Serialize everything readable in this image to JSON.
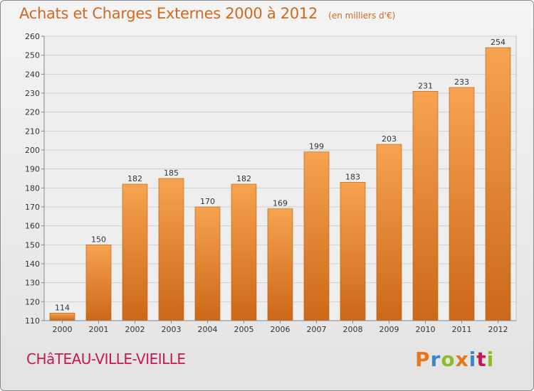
{
  "chart_data": {
    "type": "bar",
    "title": "Achats et Charges Externes 2000 à 2012",
    "unit": "(en milliers d'€)",
    "categories": [
      "2000",
      "2001",
      "2002",
      "2003",
      "2004",
      "2005",
      "2006",
      "2007",
      "2008",
      "2009",
      "2010",
      "2011",
      "2012"
    ],
    "values": [
      114,
      150,
      182,
      185,
      170,
      182,
      169,
      199,
      183,
      203,
      231,
      233,
      254
    ],
    "ylim": [
      110,
      260
    ],
    "yticks": [
      110,
      120,
      130,
      140,
      150,
      160,
      170,
      180,
      190,
      200,
      210,
      220,
      230,
      240,
      250,
      260
    ],
    "grid": true,
    "bar_color_top": "#f6a34f",
    "bar_color_bottom": "#cc6818"
  },
  "location": "CHâTEAU-VILLE-VIEILLE",
  "brand": {
    "letters": [
      "P",
      "r",
      "o",
      "x",
      "i",
      "t",
      "i"
    ],
    "colors": [
      "#e8761a",
      "#3a86c8",
      "#8bbd2a",
      "#e8761a",
      "#3a86c8",
      "#c8194d",
      "#8bbd2a"
    ]
  }
}
